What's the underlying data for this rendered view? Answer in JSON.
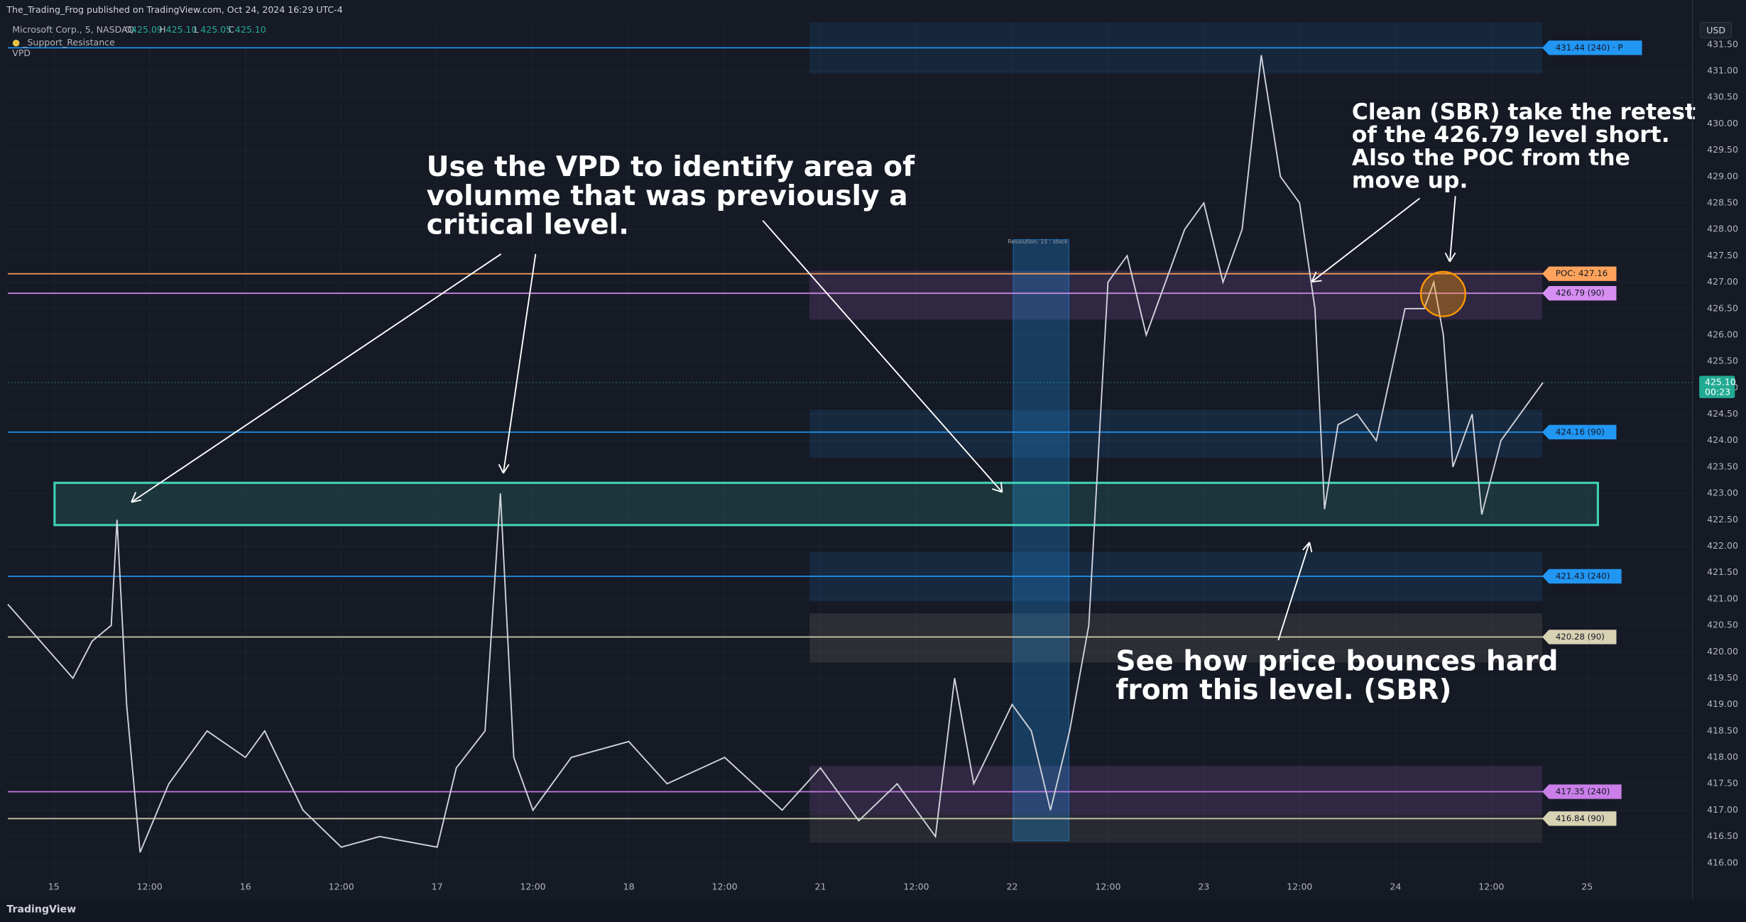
{
  "header": {
    "publisher": "The_Trading_Frog published on TradingView.com, Oct 24, 2024 16:29 UTC-4",
    "symbol": "Microsoft Corp., 5, NASDAQ",
    "ohlc": [
      {
        "key": "O",
        "value": "425.09"
      },
      {
        "key": "H",
        "value": "425.10"
      },
      {
        "key": "L",
        "value": "425.05"
      },
      {
        "key": "C",
        "value": "425.10"
      }
    ],
    "indicators": [
      "_Support_Resistance",
      "VPD"
    ],
    "currency": "USD",
    "footer": "TradingView",
    "vpd_title": "Resolution: 15 : stock"
  },
  "chart_data": {
    "type": "line",
    "xlim": [
      -0.24,
      8.55
    ],
    "ylim": [
      415.37,
      431.92
    ],
    "grid": true,
    "xticks": [
      {
        "value": 0,
        "label": "15"
      },
      {
        "value": 0.5,
        "label": "12:00"
      },
      {
        "value": 1,
        "label": "16"
      },
      {
        "value": 1.5,
        "label": "12:00"
      },
      {
        "value": 2,
        "label": "17"
      },
      {
        "value": 2.5,
        "label": "12:00"
      },
      {
        "value": 3,
        "label": "18"
      },
      {
        "value": 3.5,
        "label": "12:00"
      },
      {
        "value": 4,
        "label": "21"
      },
      {
        "value": 4.5,
        "label": "12:00"
      },
      {
        "value": 5,
        "label": "22"
      },
      {
        "value": 5.5,
        "label": "12:00"
      },
      {
        "value": 6,
        "label": "23"
      },
      {
        "value": 6.5,
        "label": "12:00"
      },
      {
        "value": 7,
        "label": "24"
      },
      {
        "value": 7.5,
        "label": "12:00"
      },
      {
        "value": 8,
        "label": "25"
      }
    ],
    "yticks": [
      {
        "value": 416,
        "label": "416.00"
      },
      {
        "value": 416.5,
        "label": "416.50"
      },
      {
        "value": 417,
        "label": "417.00"
      },
      {
        "value": 417.5,
        "label": "417.50"
      },
      {
        "value": 418,
        "label": "418.00"
      },
      {
        "value": 418.5,
        "label": "418.50"
      },
      {
        "value": 419,
        "label": "419.00"
      },
      {
        "value": 419.5,
        "label": "419.50"
      },
      {
        "value": 420,
        "label": "420.00"
      },
      {
        "value": 420.5,
        "label": "420.50"
      },
      {
        "value": 421,
        "label": "421.00"
      },
      {
        "value": 421.5,
        "label": "421.50"
      },
      {
        "value": 422,
        "label": "422.00"
      },
      {
        "value": 422.5,
        "label": "422.50"
      },
      {
        "value": 423,
        "label": "423.00"
      },
      {
        "value": 423.5,
        "label": "423.50"
      },
      {
        "value": 424,
        "label": "424.00"
      },
      {
        "value": 424.5,
        "label": "424.50"
      },
      {
        "value": 425,
        "label": "425.00"
      },
      {
        "value": 425.5,
        "label": "425.50"
      },
      {
        "value": 426,
        "label": "426.00"
      },
      {
        "value": 426.5,
        "label": "426.50"
      },
      {
        "value": 427,
        "label": "427.00"
      },
      {
        "value": 427.5,
        "label": "427.50"
      },
      {
        "value": 428,
        "label": "428.00"
      },
      {
        "value": 428.5,
        "label": "428.50"
      },
      {
        "value": 429,
        "label": "429.00"
      },
      {
        "value": 429.5,
        "label": "429.50"
      },
      {
        "value": 430,
        "label": "430.00"
      },
      {
        "value": 430.5,
        "label": "430.50"
      },
      {
        "value": 431,
        "label": "431.00"
      },
      {
        "value": 431.5,
        "label": "431.50"
      }
    ],
    "x": [
      -0.24,
      0.1,
      0.2,
      0.3,
      0.33,
      0.38,
      0.45,
      0.6,
      0.8,
      1.0,
      1.1,
      1.3,
      1.5,
      1.7,
      2.0,
      2.1,
      2.25,
      2.33,
      2.4,
      2.5,
      2.7,
      3.0,
      3.2,
      3.5,
      3.8,
      4.0,
      4.2,
      4.4,
      4.6,
      4.7,
      4.8,
      5.0,
      5.1,
      5.2,
      5.3,
      5.4,
      5.5,
      5.6,
      5.7,
      5.9,
      6.0,
      6.1,
      6.2,
      6.3,
      6.4,
      6.5,
      6.58,
      6.63,
      6.7,
      6.8,
      6.9,
      7.05,
      7.15,
      7.2,
      7.25,
      7.3,
      7.4,
      7.45,
      7.55,
      7.65,
      7.77
    ],
    "series": [
      {
        "name": "MSFT",
        "color": "#d1d4dc",
        "values": [
          420.9,
          419.5,
          420.2,
          420.5,
          422.5,
          419.0,
          416.2,
          417.5,
          418.5,
          418.0,
          418.5,
          417.0,
          416.3,
          416.5,
          416.3,
          417.8,
          418.5,
          423.0,
          418.0,
          417.0,
          418.0,
          418.3,
          417.5,
          418.0,
          417.0,
          417.8,
          416.8,
          417.5,
          416.5,
          419.5,
          417.5,
          419.0,
          418.5,
          417.0,
          418.5,
          420.5,
          427.0,
          427.5,
          426.0,
          428.0,
          428.5,
          427.0,
          428.0,
          431.3,
          429.0,
          428.5,
          426.5,
          422.7,
          424.3,
          424.5,
          424.0,
          426.5,
          426.5,
          427.0,
          426.0,
          423.5,
          424.5,
          422.6,
          424.0,
          424.5,
          425.1
        ]
      }
    ],
    "levels": [
      {
        "value": 431.44,
        "label": "431.44 (240) · P",
        "color": "#2196f3"
      },
      {
        "value": 427.16,
        "label": "POC: 427.16",
        "color": "#ffa35c"
      },
      {
        "value": 426.79,
        "label": "426.79 (90)",
        "color": "#d68ef2"
      },
      {
        "value": 424.16,
        "label": "424.16 (90)",
        "color": "#2196f3"
      },
      {
        "value": 421.43,
        "label": "421.43 (240)",
        "color": "#2196f3"
      },
      {
        "value": 420.28,
        "label": "420.28 (90)",
        "color": "#d8d2b4"
      },
      {
        "value": 417.35,
        "label": "417.35 (240)",
        "color": "#c97ee8"
      },
      {
        "value": 416.84,
        "label": "416.84 (90)",
        "color": "#d8d2b4"
      }
    ],
    "zone": {
      "low": 422.4,
      "high": 423.2,
      "color": "#3fd1b4"
    },
    "last_price": {
      "value": 425.1,
      "label": "425.10",
      "countdown": "00:23",
      "color": "#22ab94"
    },
    "annotations": [
      {
        "lines": [
          "Use the VPD to identify area of",
          "volunme that was previously a",
          "critical level."
        ]
      },
      {
        "lines": [
          "Clean (SBR) take the retest",
          "of the 426.79 level short.",
          "Also the POC from the",
          "move up."
        ]
      },
      {
        "lines": [
          "See how price bounces hard",
          "from this level. (SBR)"
        ]
      }
    ]
  }
}
